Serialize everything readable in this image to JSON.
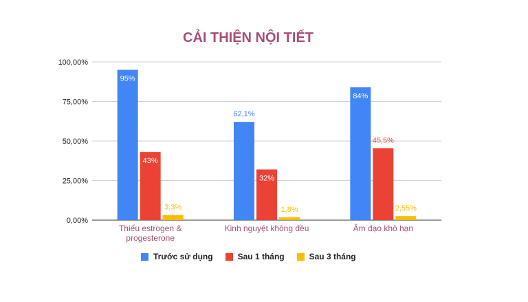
{
  "chart_data": {
    "type": "bar",
    "title": "CẢI THIỆN NỘI TIẾT",
    "categories": [
      "Thiếu estrogen & progesterone",
      "Kinh nguyệt không đều",
      "Âm đạo khô hạn"
    ],
    "category_lines": [
      [
        "Thiếu estrogen &",
        "progesterone"
      ],
      [
        "Kinh nguyệt không đều"
      ],
      [
        "Âm đạo khô hạn"
      ]
    ],
    "series": [
      {
        "name": "Trước sử dụng",
        "color": "#4285f4",
        "values": [
          95,
          62.1,
          84
        ],
        "labels": [
          "95%",
          "62,1%",
          "84%"
        ],
        "label_inside": [
          true,
          false,
          true
        ]
      },
      {
        "name": "Sau 1 tháng",
        "color": "#ea4335",
        "values": [
          43,
          32,
          45.5
        ],
        "labels": [
          "43%",
          "32%",
          "45,5%"
        ],
        "label_inside": [
          true,
          true,
          false
        ]
      },
      {
        "name": "Sau 3 tháng",
        "color": "#fbbc04",
        "values": [
          3.3,
          1.8,
          2.55
        ],
        "labels": [
          "3,3%",
          "1,8%",
          "2,55%"
        ],
        "label_inside": [
          false,
          false,
          false
        ]
      }
    ],
    "ylim": [
      0,
      100
    ],
    "yticks": [
      0,
      25,
      50,
      75,
      100
    ],
    "ytick_labels": [
      "0,00%",
      "25,00%",
      "50,00%",
      "75,00%",
      "100,00%"
    ],
    "grid": true,
    "legend_position": "bottom"
  }
}
